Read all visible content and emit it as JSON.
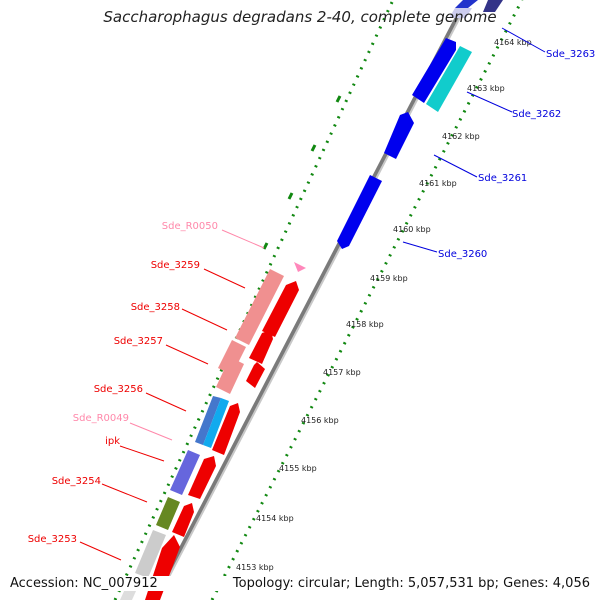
{
  "title": "Saccharophagus degradans 2-40, complete genome",
  "footer": {
    "accession": "Accession: NC_007912",
    "topology": "Topology: circular; Length: 5,057,531 bp; Genes: 4,056"
  },
  "colors": {
    "forward_label": "#0000dd",
    "reverse_label": "#ee0000",
    "rna_label": "#ff88aa",
    "backbone": "#888888",
    "tick_dots": "#118811"
  },
  "ticks": [
    "4153 kbp",
    "4154 kbp",
    "4155 kbp",
    "4156 kbp",
    "4157 kbp",
    "4158 kbp",
    "4159 kbp",
    "4160 kbp",
    "4161 kbp",
    "4162 kbp",
    "4163 kbp",
    "4164 kbp"
  ],
  "labels_right": [
    "Sde_3263",
    "Sde_3262",
    "Sde_3261",
    "Sde_3260"
  ],
  "labels_left": [
    "Sde_R0050",
    "Sde_3259",
    "Sde_3258",
    "Sde_3257",
    "Sde_3256",
    "Sde_R0049",
    "ipk",
    "Sde_3254",
    "Sde_3253"
  ]
}
